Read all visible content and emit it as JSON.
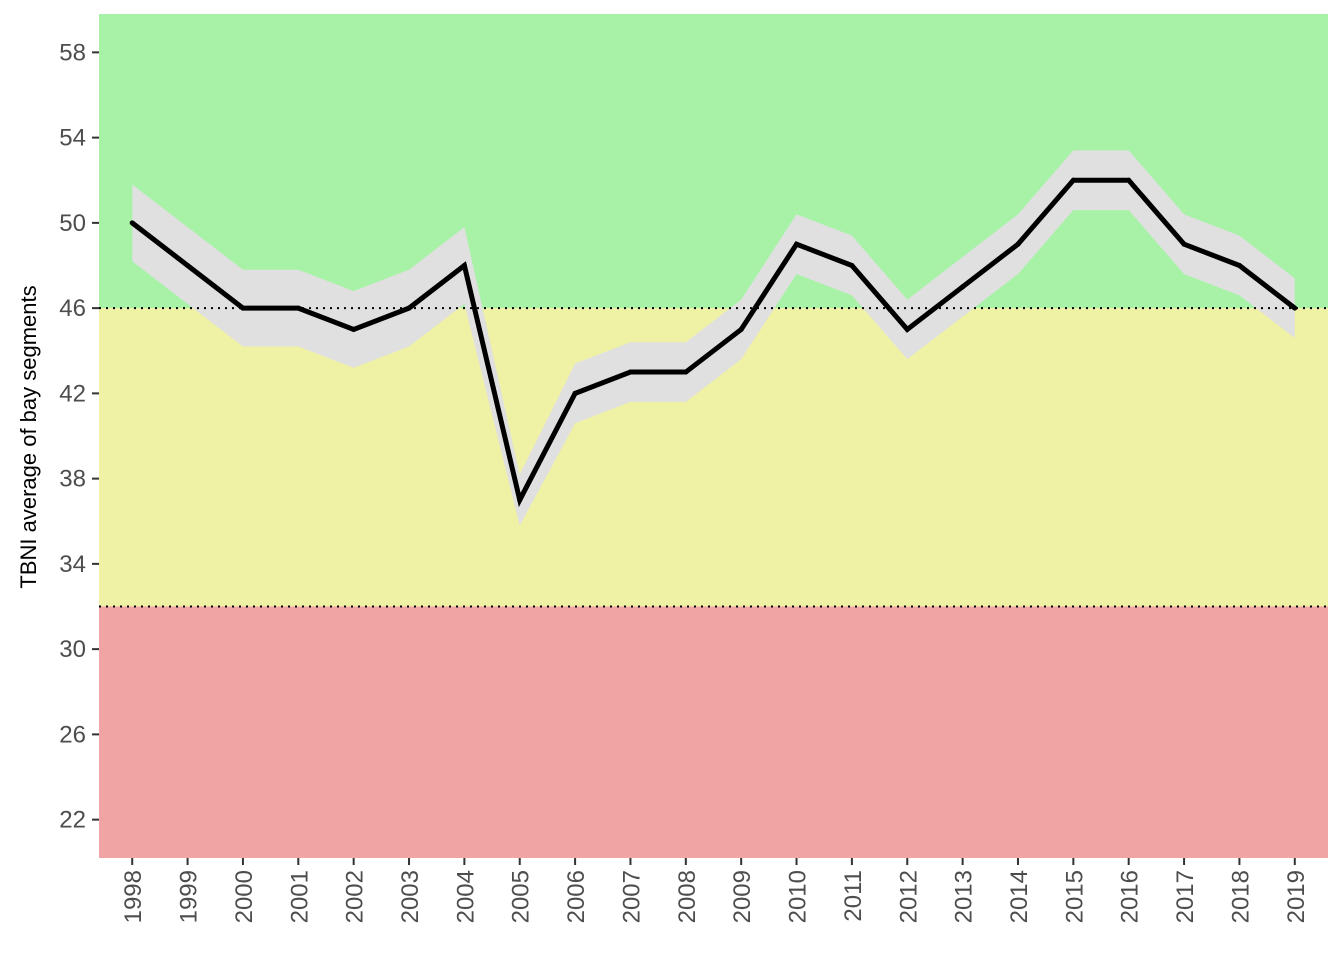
{
  "chart_data": {
    "type": "line",
    "ylabel": "TBNI average of bay segments",
    "xlabel": "",
    "ylim": [
      20.2,
      59.8
    ],
    "yticks": [
      22,
      26,
      30,
      34,
      38,
      42,
      46,
      50,
      54,
      58
    ],
    "x": [
      1998,
      1999,
      2000,
      2001,
      2002,
      2003,
      2004,
      2005,
      2006,
      2007,
      2008,
      2009,
      2010,
      2011,
      2012,
      2013,
      2014,
      2015,
      2016,
      2017,
      2018,
      2019
    ],
    "series": [
      {
        "values": [
          50,
          48,
          46,
          46,
          45,
          46,
          48,
          37,
          42,
          43,
          43,
          45,
          49,
          48,
          45,
          47,
          49,
          52,
          52,
          49,
          48,
          46
        ],
        "upper": [
          51.8,
          49.8,
          47.8,
          47.8,
          46.8,
          47.8,
          49.8,
          38.2,
          43.4,
          44.4,
          44.4,
          46.4,
          50.4,
          49.4,
          46.4,
          48.4,
          50.4,
          53.4,
          53.4,
          50.4,
          49.4,
          47.4
        ],
        "lower": [
          48.2,
          46.2,
          44.2,
          44.2,
          43.2,
          44.2,
          46.2,
          35.8,
          40.6,
          41.6,
          41.6,
          43.6,
          47.6,
          46.6,
          43.6,
          45.6,
          47.6,
          50.6,
          50.6,
          47.6,
          46.6,
          44.6
        ],
        "color": "#000000",
        "band_color": "#e0e0e0"
      }
    ],
    "zones": [
      {
        "from": 46,
        "to": 59.8,
        "color": "#a8f2a8"
      },
      {
        "from": 32,
        "to": 46,
        "color": "#eff1a5"
      },
      {
        "from": 20.2,
        "to": 32,
        "color": "#f0a4a4"
      }
    ],
    "reference_lines": [
      46,
      32
    ],
    "grid": false
  }
}
